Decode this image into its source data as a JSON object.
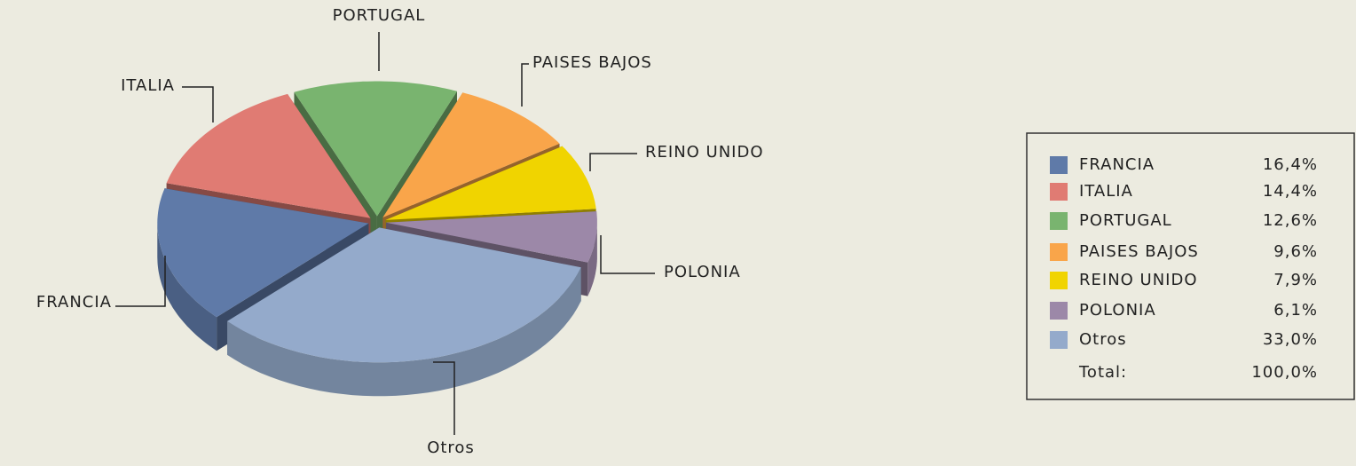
{
  "chart_data": {
    "type": "pie",
    "categories": [
      "FRANCIA",
      "ITALIA",
      "PORTUGAL",
      "PAISES BAJOS",
      "REINO UNIDO",
      "POLONIA",
      "Otros"
    ],
    "values": [
      16.4,
      14.4,
      12.6,
      9.6,
      7.9,
      6.1,
      33.0
    ],
    "value_labels": [
      "16,4%",
      "14,4%",
      "12,6%",
      "9,6%",
      "7,9%",
      "6,1%",
      "33,0%"
    ],
    "colors": [
      "#5f7aa8",
      "#e07b73",
      "#79b46f",
      "#f9a54a",
      "#f0d400",
      "#9c88a8",
      "#94aacb"
    ],
    "legend": "right",
    "total": {
      "label": "Total:",
      "value": 100,
      "value_label": "100,0%"
    }
  }
}
